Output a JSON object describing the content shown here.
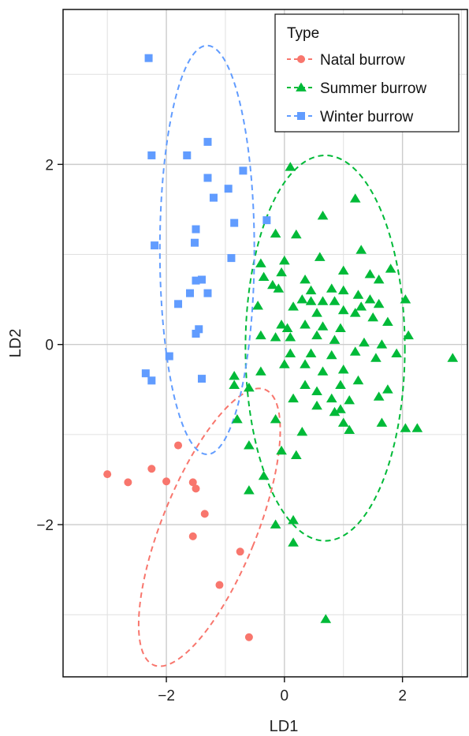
{
  "chart_data": {
    "type": "scatter",
    "xlabel": "LD1",
    "ylabel": "LD2",
    "xlim": [
      -3.75,
      3.1
    ],
    "ylim": [
      -3.69,
      3.72
    ],
    "x_ticks": [
      -2,
      0,
      2
    ],
    "y_ticks": [
      -2,
      0,
      2
    ],
    "x_tick_labels": [
      "−2",
      "0",
      "2"
    ],
    "y_tick_labels": [
      "−2",
      "0",
      "2"
    ],
    "grid": true,
    "legend": {
      "title": "Type",
      "placement": "top-right"
    },
    "series": [
      {
        "name": "Natal burrow",
        "color": "#F8766D",
        "marker": "circle",
        "points": [
          [
            -3.0,
            -1.44
          ],
          [
            -2.65,
            -1.53
          ],
          [
            -2.25,
            -1.38
          ],
          [
            -2.0,
            -1.52
          ],
          [
            -1.8,
            -1.12
          ],
          [
            -1.55,
            -1.53
          ],
          [
            -1.5,
            -1.6
          ],
          [
            -1.35,
            -1.88
          ],
          [
            -1.55,
            -2.13
          ],
          [
            -1.1,
            -2.67
          ],
          [
            -0.75,
            -2.3
          ],
          [
            -0.6,
            -3.25
          ]
        ],
        "ellipse": {
          "cx": -1.27,
          "cy": -2.03,
          "rx": 0.8,
          "ry": 1.65,
          "angle_deg": 22
        }
      },
      {
        "name": "Summer burrow",
        "color": "#00BA38",
        "marker": "triangle",
        "points": [
          [
            0.1,
            1.97
          ],
          [
            1.2,
            1.62
          ],
          [
            0.65,
            1.43
          ],
          [
            -0.15,
            1.23
          ],
          [
            0.2,
            1.22
          ],
          [
            1.3,
            1.05
          ],
          [
            1.8,
            0.84
          ],
          [
            -0.4,
            0.9
          ],
          [
            0.0,
            0.93
          ],
          [
            0.6,
            0.97
          ],
          [
            -0.05,
            0.8
          ],
          [
            0.35,
            0.72
          ],
          [
            1.0,
            0.82
          ],
          [
            -0.35,
            0.75
          ],
          [
            -0.2,
            0.66
          ],
          [
            -0.1,
            0.62
          ],
          [
            0.45,
            0.6
          ],
          [
            0.8,
            0.62
          ],
          [
            1.45,
            0.78
          ],
          [
            1.6,
            0.72
          ],
          [
            0.3,
            0.5
          ],
          [
            0.45,
            0.48
          ],
          [
            0.65,
            0.48
          ],
          [
            0.85,
            0.48
          ],
          [
            1.0,
            0.6
          ],
          [
            1.25,
            0.55
          ],
          [
            1.45,
            0.5
          ],
          [
            2.05,
            0.5
          ],
          [
            -0.45,
            0.43
          ],
          [
            0.15,
            0.42
          ],
          [
            0.55,
            0.35
          ],
          [
            1.0,
            0.38
          ],
          [
            1.3,
            0.42
          ],
          [
            1.6,
            0.45
          ],
          [
            -0.05,
            0.22
          ],
          [
            0.05,
            0.18
          ],
          [
            0.35,
            0.22
          ],
          [
            0.65,
            0.2
          ],
          [
            0.95,
            0.18
          ],
          [
            1.2,
            0.35
          ],
          [
            1.5,
            0.3
          ],
          [
            1.75,
            0.25
          ],
          [
            2.1,
            0.1
          ],
          [
            -0.4,
            0.1
          ],
          [
            -0.15,
            0.08
          ],
          [
            0.1,
            0.08
          ],
          [
            0.55,
            0.1
          ],
          [
            0.85,
            0.05
          ],
          [
            1.35,
            0.02
          ],
          [
            1.65,
            0.0
          ],
          [
            0.1,
            -0.1
          ],
          [
            0.45,
            -0.1
          ],
          [
            0.8,
            -0.12
          ],
          [
            1.2,
            -0.08
          ],
          [
            1.9,
            -0.1
          ],
          [
            -0.85,
            -0.35
          ],
          [
            -0.4,
            -0.3
          ],
          [
            0.0,
            -0.22
          ],
          [
            0.35,
            -0.22
          ],
          [
            0.65,
            -0.3
          ],
          [
            1.0,
            -0.28
          ],
          [
            1.55,
            -0.15
          ],
          [
            2.85,
            -0.15
          ],
          [
            -0.85,
            -0.45
          ],
          [
            -0.6,
            -0.48
          ],
          [
            0.35,
            -0.45
          ],
          [
            0.55,
            -0.52
          ],
          [
            0.95,
            -0.45
          ],
          [
            1.25,
            -0.4
          ],
          [
            1.75,
            -0.5
          ],
          [
            0.15,
            -0.6
          ],
          [
            0.8,
            -0.6
          ],
          [
            1.1,
            -0.62
          ],
          [
            1.6,
            -0.58
          ],
          [
            0.55,
            -0.68
          ],
          [
            0.95,
            -0.72
          ],
          [
            0.85,
            -0.75
          ],
          [
            -0.8,
            -0.83
          ],
          [
            -0.15,
            -0.83
          ],
          [
            1.0,
            -0.87
          ],
          [
            1.65,
            -0.87
          ],
          [
            0.3,
            -0.97
          ],
          [
            1.1,
            -0.95
          ],
          [
            2.05,
            -0.93
          ],
          [
            2.25,
            -0.93
          ],
          [
            -0.6,
            -1.12
          ],
          [
            -0.05,
            -1.18
          ],
          [
            0.2,
            -1.23
          ],
          [
            -0.35,
            -1.46
          ],
          [
            -0.6,
            -1.62
          ],
          [
            0.15,
            -1.95
          ],
          [
            -0.15,
            -2.0
          ],
          [
            0.15,
            -2.2
          ],
          [
            0.7,
            -3.05
          ]
        ],
        "ellipse": {
          "cx": 0.69,
          "cy": -0.04,
          "rx": 1.35,
          "ry": 2.14,
          "angle_deg": 0
        }
      },
      {
        "name": "Winter burrow",
        "color": "#619CFF",
        "marker": "square",
        "points": [
          [
            -2.3,
            3.18
          ],
          [
            -2.25,
            2.1
          ],
          [
            -1.65,
            2.1
          ],
          [
            -1.3,
            2.25
          ],
          [
            -0.7,
            1.93
          ],
          [
            -1.3,
            1.85
          ],
          [
            -0.95,
            1.73
          ],
          [
            -1.2,
            1.63
          ],
          [
            -0.3,
            1.38
          ],
          [
            -0.85,
            1.35
          ],
          [
            -1.5,
            1.28
          ],
          [
            -2.2,
            1.1
          ],
          [
            -1.52,
            1.13
          ],
          [
            -0.9,
            0.96
          ],
          [
            -1.4,
            0.72
          ],
          [
            -1.5,
            0.71
          ],
          [
            -1.6,
            0.57
          ],
          [
            -1.3,
            0.57
          ],
          [
            -1.8,
            0.45
          ],
          [
            -1.45,
            0.17
          ],
          [
            -1.5,
            0.12
          ],
          [
            -1.95,
            -0.13
          ],
          [
            -2.35,
            -0.32
          ],
          [
            -1.4,
            -0.38
          ],
          [
            -2.25,
            -0.4
          ]
        ],
        "ellipse": {
          "cx": -1.31,
          "cy": 1.05,
          "rx": 0.8,
          "ry": 2.27,
          "angle_deg": 0
        }
      }
    ]
  }
}
